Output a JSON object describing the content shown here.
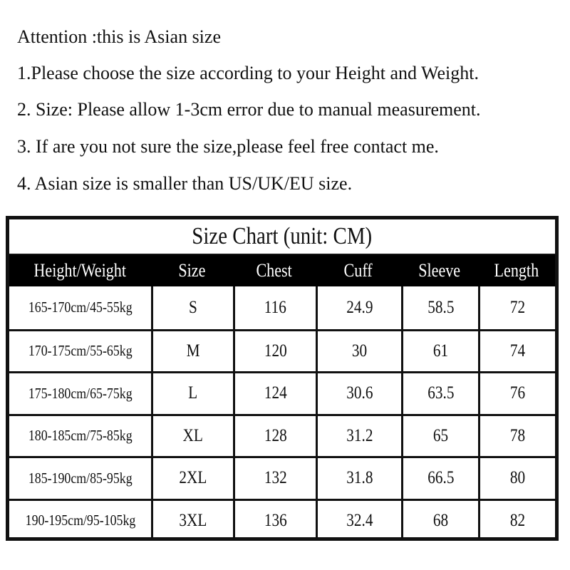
{
  "notes": [
    "Attention :this is Asian size",
    "1.Please choose the size according to your Height and Weight.",
    "2. Size: Please allow 1-3cm error due to manual measurement.",
    "3. If are you not sure the size,please feel free contact me.",
    "4. Asian size is smaller than US/UK/EU size."
  ],
  "table": {
    "title": "Size Chart (unit: CM)",
    "headers": [
      "Height/Weight",
      "Size",
      "Chest",
      "Cuff",
      "Sleeve",
      "Length"
    ],
    "rows": [
      [
        "165-170cm/45-55kg",
        "S",
        "116",
        "24.9",
        "58.5",
        "72"
      ],
      [
        "170-175cm/55-65kg",
        "M",
        "120",
        "30",
        "61",
        "74"
      ],
      [
        "175-180cm/65-75kg",
        "L",
        "124",
        "30.6",
        "63.5",
        "76"
      ],
      [
        "180-185cm/75-85kg",
        "XL",
        "128",
        "31.2",
        "65",
        "78"
      ],
      [
        "185-190cm/85-95kg",
        "2XL",
        "132",
        "31.8",
        "66.5",
        "80"
      ],
      [
        "190-195cm/95-105kg",
        "3XL",
        "136",
        "32.4",
        "68",
        "82"
      ]
    ]
  }
}
